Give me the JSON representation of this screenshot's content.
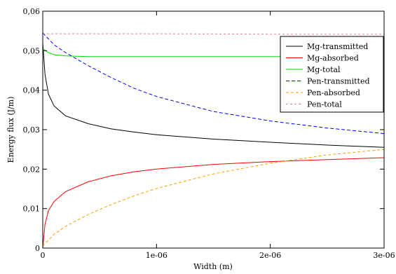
{
  "chart_data": {
    "type": "line",
    "title": "",
    "xlabel": "Width (m)",
    "ylabel": "Energy flux (J/m)",
    "xlim": [
      0,
      3e-06
    ],
    "ylim": [
      0,
      0.06
    ],
    "x_ticks": [
      0,
      1e-06,
      2e-06,
      3e-06
    ],
    "x_tick_labels": [
      "0",
      "1e-06",
      "2e-06",
      "3e-06"
    ],
    "y_ticks": [
      0,
      0.01,
      0.02,
      0.03,
      0.04,
      0.05,
      0.06
    ],
    "y_tick_labels": [
      "0",
      "0,01",
      "0,02",
      "0,03",
      "0,04",
      "0,05",
      "0,06"
    ],
    "grid": false,
    "legend_position": "top-right",
    "series": [
      {
        "name": "Mg-transmitted",
        "color": "#000000",
        "dash": "solid",
        "points": [
          [
            0,
            0.052
          ],
          [
            2e-08,
            0.044
          ],
          [
            5e-08,
            0.039
          ],
          [
            1e-07,
            0.036
          ],
          [
            2e-07,
            0.0335
          ],
          [
            4e-07,
            0.0315
          ],
          [
            6e-07,
            0.0302
          ],
          [
            8e-07,
            0.0294
          ],
          [
            1e-06,
            0.0287
          ],
          [
            1.5e-06,
            0.0276
          ],
          [
            2e-06,
            0.0268
          ],
          [
            2.5e-06,
            0.0261
          ],
          [
            3e-06,
            0.0255
          ]
        ]
      },
      {
        "name": "Mg-absorbed",
        "color": "#ff0000",
        "dash": "solid",
        "points": [
          [
            0,
            0.0
          ],
          [
            2e-08,
            0.006
          ],
          [
            5e-08,
            0.0095
          ],
          [
            1e-07,
            0.0118
          ],
          [
            2e-07,
            0.0143
          ],
          [
            4e-07,
            0.0168
          ],
          [
            6e-07,
            0.0183
          ],
          [
            8e-07,
            0.0193
          ],
          [
            1e-06,
            0.02
          ],
          [
            1.5e-06,
            0.0212
          ],
          [
            2e-06,
            0.0219
          ],
          [
            2.5e-06,
            0.0224
          ],
          [
            3e-06,
            0.0229
          ]
        ]
      },
      {
        "name": "Mg-total",
        "color": "#00dd00",
        "dash": "solid",
        "points": [
          [
            0,
            0.0505
          ],
          [
            2e-08,
            0.0501
          ],
          [
            5e-08,
            0.0495
          ],
          [
            1e-07,
            0.049
          ],
          [
            2e-07,
            0.0487
          ],
          [
            4e-07,
            0.0485
          ],
          [
            1e-06,
            0.0485
          ],
          [
            2e-06,
            0.0485
          ],
          [
            3e-06,
            0.0485
          ]
        ]
      },
      {
        "name": "Pen-transmitted",
        "color": "#0000ff",
        "dash": "5,3",
        "points": [
          [
            0,
            0.0545
          ],
          [
            1e-07,
            0.0515
          ],
          [
            2e-07,
            0.0495
          ],
          [
            4e-07,
            0.0462
          ],
          [
            6e-07,
            0.0432
          ],
          [
            8e-07,
            0.0405
          ],
          [
            1e-06,
            0.0384
          ],
          [
            1.5e-06,
            0.0346
          ],
          [
            2e-06,
            0.0322
          ],
          [
            2.5e-06,
            0.0304
          ],
          [
            3e-06,
            0.029
          ]
        ]
      },
      {
        "name": "Pen-absorbed",
        "color": "#ffa000",
        "dash": "4,3",
        "points": [
          [
            0,
            0.0005
          ],
          [
            5e-08,
            0.002
          ],
          [
            1e-07,
            0.0035
          ],
          [
            2e-07,
            0.0055
          ],
          [
            4e-07,
            0.0085
          ],
          [
            6e-07,
            0.011
          ],
          [
            8e-07,
            0.0132
          ],
          [
            1e-06,
            0.0151
          ],
          [
            1.5e-06,
            0.0188
          ],
          [
            2e-06,
            0.0215
          ],
          [
            2.5e-06,
            0.0236
          ],
          [
            3e-06,
            0.025
          ]
        ]
      },
      {
        "name": "Pen-total",
        "color": "#e08890",
        "dash": "3,3",
        "points": [
          [
            0,
            0.0543
          ],
          [
            1e-06,
            0.0543
          ],
          [
            2e-06,
            0.0542
          ],
          [
            3e-06,
            0.0542
          ]
        ]
      }
    ]
  }
}
